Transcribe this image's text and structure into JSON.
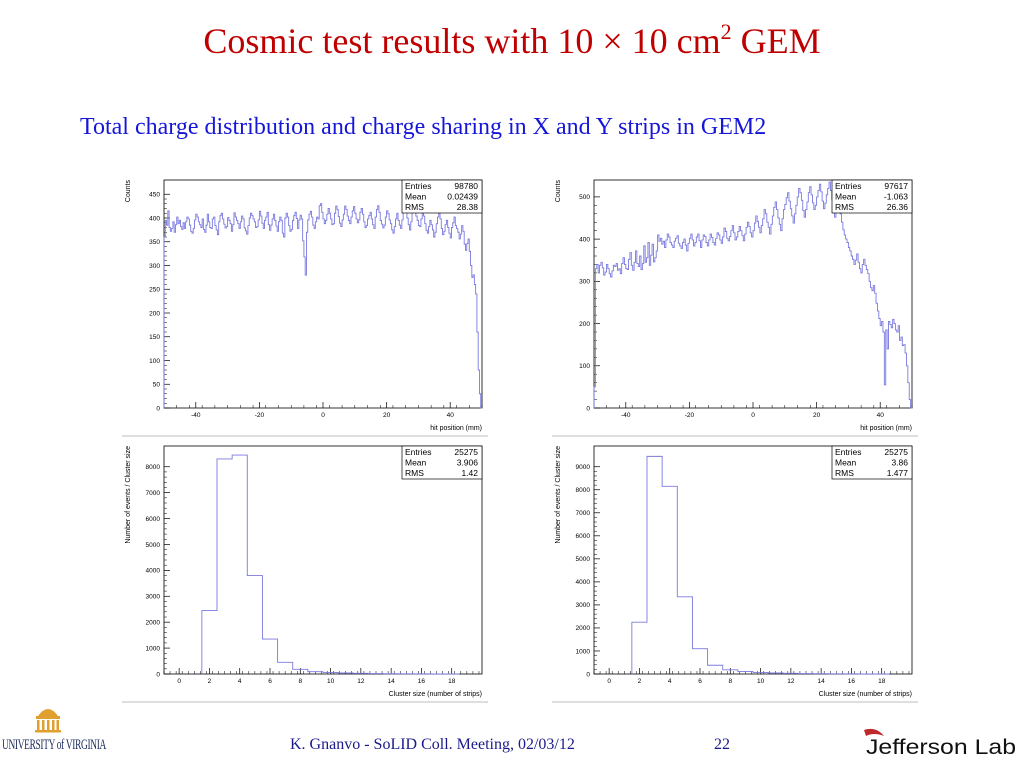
{
  "slide": {
    "title": "Cosmic test results with 10 × 10 cm",
    "title_sup": "2",
    "title_after": " GEM",
    "subtitle": "Total charge distribution and charge sharing in X and Y strips in GEM2",
    "footer": "K. Gnanvo  -  SoLID Coll. Meeting, 02/03/12",
    "page_number": "22",
    "logo_left": "UNIVERSITY of VIRGINIA",
    "logo_right": "Jefferson Lab",
    "colors": {
      "title": "#c00000",
      "subtitle": "#1616d8",
      "histogram": "#7a7ae0"
    }
  },
  "chart_data": [
    {
      "type": "histogram",
      "id": "x-hit",
      "xlabel": "hit position (mm)",
      "ylabel": "Counts",
      "xlim": [
        -50,
        50
      ],
      "ylim": [
        0,
        480
      ],
      "xticks": [
        -40,
        -20,
        0,
        20,
        40
      ],
      "yticks": [
        0,
        50,
        100,
        150,
        200,
        250,
        300,
        350,
        400,
        450
      ],
      "stats": [
        [
          "Entries",
          "98780"
        ],
        [
          "Mean",
          "0.02439"
        ],
        [
          "RMS",
          "28.38"
        ]
      ],
      "values": [
        360,
        395,
        385,
        415,
        380,
        372,
        378,
        392,
        370,
        386,
        402,
        388,
        395,
        382,
        376,
        390,
        378,
        392,
        402,
        398,
        385,
        372,
        368,
        378,
        396,
        408,
        402,
        392,
        386,
        380,
        398,
        376,
        370,
        385,
        408,
        392,
        380,
        378,
        398,
        402,
        384,
        375,
        365,
        392,
        405,
        410,
        398,
        387,
        379,
        382,
        401,
        395,
        388,
        372,
        386,
        411,
        402,
        395,
        388,
        378,
        392,
        404,
        398,
        379,
        373,
        366,
        384,
        400,
        410,
        405,
        398,
        392,
        380,
        382,
        396,
        414,
        404,
        389,
        378,
        395,
        402,
        412,
        386,
        374,
        385,
        398,
        408,
        395,
        383,
        372,
        392,
        402,
        395,
        368,
        360,
        400,
        410,
        402,
        384,
        372,
        376,
        395,
        405,
        412,
        399,
        378,
        396,
        406,
        398,
        352,
        318,
        280,
        370,
        396,
        408,
        414,
        402,
        385,
        378,
        392,
        402,
        398,
        426,
        430,
        412,
        398,
        388,
        395,
        408,
        420,
        410,
        398,
        386,
        388,
        410,
        425,
        418,
        403,
        389,
        382,
        396,
        408,
        425,
        418,
        404,
        395,
        388,
        402,
        415,
        424,
        410,
        398,
        390,
        396,
        412,
        420,
        408,
        392,
        380,
        384,
        398,
        405,
        412,
        398,
        386,
        378,
        402,
        418,
        426,
        412,
        395,
        387,
        379,
        385,
        402,
        415,
        409,
        396,
        388,
        375,
        368,
        382,
        398,
        410,
        395,
        385,
        378,
        396,
        415,
        425,
        418,
        400,
        386,
        375,
        392,
        412,
        426,
        420,
        404,
        395,
        384,
        382,
        398,
        416,
        404,
        388,
        374,
        368,
        382,
        395,
        386,
        375,
        360,
        370,
        388,
        402,
        410,
        398,
        378,
        365,
        372,
        386,
        395,
        380,
        368,
        358,
        380,
        390,
        402,
        384,
        378,
        370,
        356,
        366,
        384,
        372,
        345,
        332,
        346,
        356,
        330,
        300,
        275,
        280,
        260,
        240,
        160,
        80,
        30,
        0
      ]
    },
    {
      "type": "histogram",
      "id": "y-hit",
      "xlabel": "hit position (mm)",
      "ylabel": "Counts",
      "xlim": [
        -50,
        50
      ],
      "ylim": [
        0,
        540
      ],
      "xticks": [
        -40,
        -20,
        0,
        20,
        40
      ],
      "yticks": [
        0,
        100,
        200,
        300,
        400,
        500
      ],
      "stats": [
        [
          "Entries",
          "97617"
        ],
        [
          "Mean",
          "-1.063"
        ],
        [
          "RMS",
          "26.36"
        ]
      ],
      "values": [
        50,
        330,
        340,
        320,
        338,
        345,
        332,
        315,
        322,
        340,
        330,
        318,
        310,
        325,
        338,
        335,
        342,
        326,
        330,
        318,
        342,
        356,
        340,
        330,
        328,
        352,
        368,
        338,
        326,
        345,
        372,
        342,
        335,
        360,
        328,
        342,
        384,
        345,
        356,
        392,
        338,
        362,
        388,
        346,
        356,
        372,
        410,
        395,
        402,
        388,
        395,
        380,
        398,
        412,
        405,
        392,
        386,
        380,
        395,
        402,
        408,
        390,
        384,
        378,
        392,
        400,
        386,
        372,
        390,
        402,
        412,
        398,
        384,
        392,
        405,
        412,
        396,
        380,
        398,
        410,
        406,
        392,
        384,
        398,
        412,
        404,
        392,
        386,
        402,
        415,
        410,
        398,
        390,
        405,
        426,
        418,
        402,
        396,
        406,
        420,
        432,
        415,
        398,
        405,
        418,
        430,
        420,
        408,
        396,
        412,
        428,
        440,
        430,
        415,
        405,
        420,
        438,
        455,
        442,
        428,
        415,
        432,
        448,
        470,
        460,
        440,
        428,
        412,
        435,
        455,
        475,
        488,
        470,
        450,
        435,
        420,
        448,
        470,
        482,
        498,
        510,
        490,
        472,
        455,
        438,
        460,
        480,
        500,
        520,
        510,
        492,
        468,
        452,
        470,
        488,
        510,
        524,
        505,
        486,
        470,
        480,
        500,
        515,
        530,
        512,
        490,
        472,
        485,
        505,
        520,
        535,
        515,
        495,
        470,
        452,
        472,
        495,
        478,
        460,
        440,
        422,
        410,
        400,
        392,
        380,
        372,
        360,
        352,
        340,
        350,
        365,
        345,
        330,
        320,
        340,
        352,
        338,
        328,
        318,
        300,
        285,
        278,
        290,
        272,
        248,
        230,
        212,
        195,
        205,
        180,
        55,
        185,
        140,
        205,
        198,
        190,
        210,
        200,
        185,
        180,
        195,
        160,
        168,
        148,
        150,
        130,
        100,
        60,
        20,
        0
      ]
    },
    {
      "type": "histogram",
      "id": "x-cluster",
      "xlabel": "Cluster size (number of strips)",
      "ylabel": "Number of events / Cluster size",
      "xlim": [
        -1,
        20
      ],
      "ylim": [
        0,
        8800
      ],
      "xticks": [
        0,
        2,
        4,
        6,
        8,
        10,
        12,
        14,
        16,
        18
      ],
      "yticks": [
        0,
        1000,
        2000,
        3000,
        4000,
        5000,
        6000,
        7000,
        8000
      ],
      "stats": [
        [
          "Entries",
          "25275"
        ],
        [
          "Mean",
          "3.906"
        ],
        [
          "RMS",
          "1.42"
        ]
      ],
      "bins": [
        [
          1.5,
          2.5,
          2450
        ],
        [
          2.5,
          3.5,
          8300
        ],
        [
          3.5,
          4.5,
          8450
        ],
        [
          4.5,
          5.5,
          3800
        ],
        [
          5.5,
          6.5,
          1350
        ],
        [
          6.5,
          7.5,
          450
        ],
        [
          7.5,
          8.5,
          180
        ],
        [
          8.5,
          9.5,
          90
        ],
        [
          9.5,
          10.5,
          60
        ],
        [
          10.5,
          11.5,
          40
        ],
        [
          11.5,
          12.5,
          25
        ],
        [
          12.5,
          13.5,
          15
        ],
        [
          13.5,
          14.5,
          10
        ],
        [
          14.5,
          15.5,
          8
        ],
        [
          15.5,
          16.5,
          5
        ],
        [
          16.5,
          17.5,
          3
        ],
        [
          17.5,
          18.5,
          2
        ]
      ]
    },
    {
      "type": "histogram",
      "id": "y-cluster",
      "xlabel": "Cluster size (number of strips)",
      "ylabel": "Number of events / Cluster size",
      "xlim": [
        -1,
        20
      ],
      "ylim": [
        0,
        9900
      ],
      "xticks": [
        0,
        2,
        4,
        6,
        8,
        10,
        12,
        14,
        16,
        18
      ],
      "yticks": [
        0,
        1000,
        2000,
        3000,
        4000,
        5000,
        6000,
        7000,
        8000,
        9000
      ],
      "stats": [
        [
          "Entries",
          "25275"
        ],
        [
          "Mean",
          "3.86"
        ],
        [
          "RMS",
          "1.477"
        ]
      ],
      "bins": [
        [
          1.5,
          2.5,
          2250
        ],
        [
          2.5,
          3.5,
          9450
        ],
        [
          3.5,
          4.5,
          8150
        ],
        [
          4.5,
          5.5,
          3350
        ],
        [
          5.5,
          6.5,
          1100
        ],
        [
          6.5,
          7.5,
          380
        ],
        [
          7.5,
          8.5,
          180
        ],
        [
          8.5,
          9.5,
          110
        ],
        [
          9.5,
          10.5,
          70
        ],
        [
          10.5,
          11.5,
          45
        ],
        [
          11.5,
          12.5,
          30
        ],
        [
          12.5,
          13.5,
          20
        ],
        [
          13.5,
          14.5,
          12
        ],
        [
          14.5,
          15.5,
          8
        ],
        [
          15.5,
          16.5,
          5
        ],
        [
          16.5,
          17.5,
          3
        ],
        [
          17.5,
          18.5,
          2
        ]
      ]
    }
  ]
}
